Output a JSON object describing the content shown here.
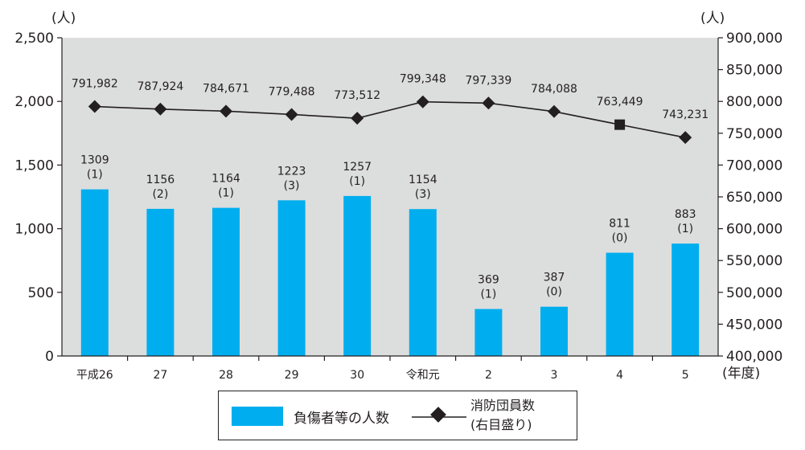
{
  "chart_data": {
    "type": "bar+line",
    "categories": [
      "平成26",
      "27",
      "28",
      "29",
      "30",
      "令和元",
      "2",
      "3",
      "4",
      "5"
    ],
    "x_unit": "(年度)",
    "series": [
      {
        "name": "負傷者等の人数",
        "type": "bar",
        "axis": "left",
        "color": "#00aeef",
        "values": [
          1309,
          1156,
          1164,
          1223,
          1257,
          1154,
          369,
          387,
          811,
          883
        ],
        "labels": [
          "1309",
          "1156",
          "1164",
          "1223",
          "1257",
          "1154",
          "369",
          "387",
          "811",
          "883"
        ],
        "sublabels": [
          "(1)",
          "(2)",
          "(1)",
          "(3)",
          "(1)",
          "(3)",
          "(1)",
          "(0)",
          "(0)",
          "(1)"
        ]
      },
      {
        "name": "消防団員数",
        "name_sub": "(右目盛り)",
        "type": "line",
        "axis": "right",
        "color": "#231f20",
        "values": [
          791982,
          787924,
          784671,
          779488,
          773512,
          799348,
          797339,
          784088,
          763449,
          743231
        ],
        "labels": [
          "791,982",
          "787,924",
          "784,671",
          "779,488",
          "773,512",
          "799,348",
          "797,339",
          "784,088",
          "763,449",
          "743,231"
        ],
        "markers": [
          "diamond",
          "diamond",
          "diamond",
          "diamond",
          "diamond",
          "diamond",
          "diamond",
          "diamond",
          "square",
          "diamond"
        ]
      }
    ],
    "left_axis": {
      "unit": "(人)",
      "ylim": [
        0,
        2500
      ],
      "ticks": [
        0,
        500,
        1000,
        1500,
        2000,
        2500
      ],
      "tick_labels": [
        "0",
        "500",
        "1,000",
        "1,500",
        "2,000",
        "2,500"
      ]
    },
    "right_axis": {
      "unit": "(人)",
      "ylim": [
        400000,
        900000
      ],
      "ticks": [
        400000,
        450000,
        500000,
        550000,
        600000,
        650000,
        700000,
        750000,
        800000,
        850000,
        900000
      ],
      "tick_labels": [
        "400,000",
        "450,000",
        "500,000",
        "550,000",
        "600,000",
        "650,000",
        "700,000",
        "750,000",
        "800,000",
        "850,000",
        "900,000"
      ]
    },
    "plot_background": "#dcdddd",
    "grid": false,
    "legend": {
      "position": "bottom-center",
      "items": [
        {
          "label": "負傷者等の人数",
          "symbol": "bar"
        },
        {
          "label": "消防団員数",
          "label_sub": "(右目盛り)",
          "symbol": "line-diamond"
        }
      ]
    }
  }
}
